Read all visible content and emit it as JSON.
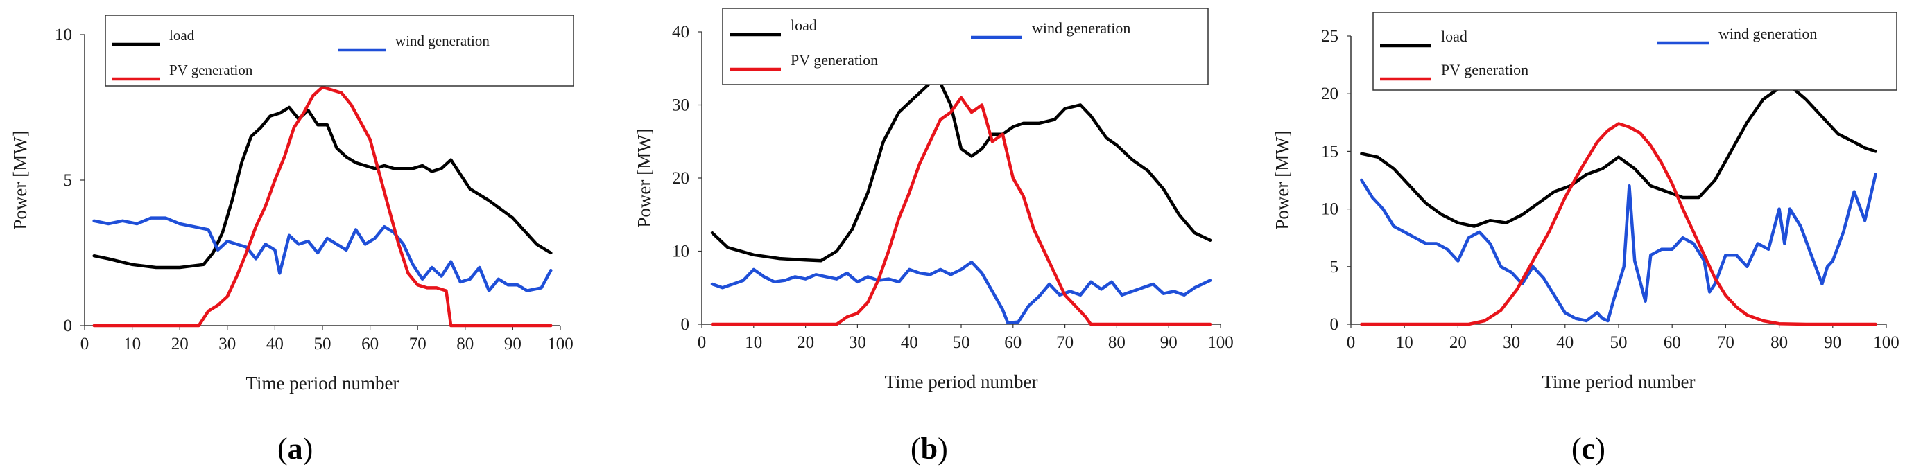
{
  "chart_data": [
    {
      "type": "line",
      "caption_letter": "a",
      "xlabel": "Time period number",
      "ylabel": "Power [MW]",
      "xlim": [
        0,
        100
      ],
      "ylim": [
        0,
        10
      ],
      "xticks": [
        "0",
        "10",
        "20",
        "30",
        "40",
        "50",
        "60",
        "70",
        "80",
        "90",
        "100"
      ],
      "yticks": [
        {
          "v": 0,
          "label": "0"
        },
        {
          "v": 5,
          "label": "5"
        },
        {
          "v": 10,
          "label": "10"
        }
      ],
      "legend": [
        "load",
        "wind generation",
        "PV generation"
      ],
      "series": [
        {
          "name": "load",
          "color": "#000000",
          "x": [
            2,
            5,
            10,
            15,
            20,
            25,
            27,
            29,
            31,
            33,
            35,
            37,
            39,
            41,
            43,
            45,
            47,
            49,
            51,
            53,
            55,
            57,
            59,
            61,
            63,
            65,
            67,
            69,
            71,
            73,
            75,
            77,
            79,
            81,
            85,
            90,
            95,
            98
          ],
          "values": [
            2.4,
            2.3,
            2.1,
            2.0,
            2.0,
            2.1,
            2.5,
            3.2,
            4.3,
            5.6,
            6.5,
            6.8,
            7.2,
            7.3,
            7.5,
            7.1,
            7.4,
            6.9,
            6.9,
            6.1,
            5.8,
            5.6,
            5.5,
            5.4,
            5.5,
            5.4,
            5.4,
            5.4,
            5.5,
            5.3,
            5.4,
            5.7,
            5.2,
            4.7,
            4.3,
            3.7,
            2.8,
            2.5
          ]
        },
        {
          "name": "wind generation",
          "color": "#1f4fd8",
          "x": [
            2,
            5,
            8,
            11,
            14,
            17,
            20,
            23,
            26,
            28,
            30,
            32,
            34,
            36,
            38,
            40,
            41,
            43,
            45,
            47,
            49,
            51,
            53,
            55,
            57,
            59,
            61,
            63,
            65,
            67,
            69,
            71,
            73,
            75,
            77,
            79,
            81,
            83,
            85,
            87,
            89,
            91,
            93,
            96,
            98
          ],
          "values": [
            3.6,
            3.5,
            3.6,
            3.5,
            3.7,
            3.7,
            3.5,
            3.4,
            3.3,
            2.6,
            2.9,
            2.8,
            2.7,
            2.3,
            2.8,
            2.6,
            1.8,
            3.1,
            2.8,
            2.9,
            2.5,
            3.0,
            2.8,
            2.6,
            3.3,
            2.8,
            3.0,
            3.4,
            3.2,
            2.8,
            2.1,
            1.6,
            2.0,
            1.7,
            2.2,
            1.5,
            1.6,
            2.0,
            1.2,
            1.6,
            1.4,
            1.4,
            1.2,
            1.3,
            1.9
          ]
        },
        {
          "name": "PV generation",
          "color": "#e8141b",
          "x": [
            2,
            24,
            26,
            28,
            30,
            32,
            34,
            36,
            38,
            40,
            42,
            44,
            46,
            48,
            50,
            52,
            54,
            56,
            58,
            60,
            62,
            64,
            66,
            68,
            70,
            72,
            74,
            76,
            77,
            98
          ],
          "values": [
            0,
            0,
            0.5,
            0.7,
            1.0,
            1.7,
            2.5,
            3.4,
            4.1,
            5.0,
            5.8,
            6.8,
            7.3,
            7.9,
            8.2,
            8.1,
            8.0,
            7.6,
            7.0,
            6.4,
            5.2,
            4.0,
            2.8,
            1.8,
            1.4,
            1.3,
            1.3,
            1.2,
            0,
            0
          ]
        }
      ]
    },
    {
      "type": "line",
      "caption_letter": "b",
      "xlabel": "Time period number",
      "ylabel": "Power [MW]",
      "xlim": [
        0,
        100
      ],
      "ylim": [
        0,
        40
      ],
      "xticks": [
        "0",
        "10",
        "20",
        "30",
        "40",
        "50",
        "60",
        "70",
        "80",
        "90",
        "100"
      ],
      "yticks": [
        {
          "v": 0,
          "label": "0"
        },
        {
          "v": 10,
          "label": "10"
        },
        {
          "v": 20,
          "label": "20"
        },
        {
          "v": 30,
          "label": "30"
        },
        {
          "v": 40,
          "label": "40"
        }
      ],
      "legend": [
        "load",
        "wind generation",
        "PV generation"
      ],
      "series": [
        {
          "name": "load",
          "color": "#000000",
          "x": [
            2,
            5,
            10,
            15,
            20,
            23,
            26,
            29,
            32,
            35,
            38,
            41,
            44,
            46,
            48,
            50,
            52,
            54,
            56,
            58,
            60,
            62,
            65,
            68,
            70,
            73,
            75,
            78,
            80,
            83,
            86,
            89,
            92,
            95,
            98
          ],
          "values": [
            12.5,
            10.5,
            9.5,
            9.0,
            8.8,
            8.7,
            10,
            13,
            18,
            25,
            29,
            31,
            33,
            33,
            30,
            24,
            23,
            24,
            26,
            26,
            27,
            27.5,
            27.5,
            28,
            29.5,
            30,
            28.5,
            25.5,
            24.5,
            22.5,
            21,
            18.5,
            15,
            12.5,
            11.5
          ]
        },
        {
          "name": "wind generation",
          "color": "#1f4fd8",
          "x": [
            2,
            4,
            6,
            8,
            10,
            12,
            14,
            16,
            18,
            20,
            22,
            24,
            26,
            28,
            30,
            32,
            34,
            36,
            38,
            40,
            42,
            44,
            46,
            48,
            50,
            52,
            54,
            56,
            58,
            59,
            61,
            63,
            65,
            67,
            69,
            71,
            73,
            75,
            77,
            79,
            81,
            83,
            85,
            87,
            89,
            91,
            93,
            95,
            98
          ],
          "values": [
            5.5,
            5.0,
            5.5,
            6.0,
            7.5,
            6.5,
            5.8,
            6.0,
            6.5,
            6.2,
            6.8,
            6.5,
            6.2,
            7.0,
            5.8,
            6.5,
            6.0,
            6.2,
            5.8,
            7.5,
            7.0,
            6.8,
            7.5,
            6.8,
            7.5,
            8.5,
            7.0,
            4.5,
            2.0,
            0.2,
            0.3,
            2.5,
            3.8,
            5.5,
            4.0,
            4.5,
            4.0,
            5.8,
            4.8,
            5.8,
            4.0,
            4.5,
            5.0,
            5.5,
            4.2,
            4.5,
            4.0,
            5.0,
            6.0
          ]
        },
        {
          "name": "PV generation",
          "color": "#e8141b",
          "x": [
            2,
            26,
            28,
            30,
            32,
            34,
            36,
            38,
            40,
            42,
            44,
            46,
            48,
            50,
            52,
            54,
            56,
            58,
            60,
            62,
            64,
            66,
            68,
            70,
            72,
            74,
            75,
            98
          ],
          "values": [
            0,
            0,
            1.0,
            1.5,
            3.0,
            6.0,
            10,
            14.5,
            18,
            22,
            25,
            28,
            29,
            31,
            29,
            30,
            25,
            26,
            20,
            17.5,
            13,
            10,
            7.0,
            4.0,
            2.5,
            1.0,
            0,
            0
          ]
        }
      ]
    },
    {
      "type": "line",
      "caption_letter": "c",
      "xlabel": "Time period number",
      "ylabel": "Power [MW]",
      "xlim": [
        0,
        100
      ],
      "ylim": [
        0,
        25
      ],
      "xticks": [
        "0",
        "10",
        "20",
        "30",
        "40",
        "50",
        "60",
        "70",
        "80",
        "90",
        "100"
      ],
      "yticks": [
        {
          "v": 0,
          "label": "0"
        },
        {
          "v": 5,
          "label": "5"
        },
        {
          "v": 10,
          "label": "10"
        },
        {
          "v": 15,
          "label": "15"
        },
        {
          "v": 20,
          "label": "20"
        },
        {
          "v": 25,
          "label": "25"
        }
      ],
      "legend": [
        "load",
        "wind generation",
        "PV generation"
      ],
      "series": [
        {
          "name": "load",
          "color": "#000000",
          "x": [
            2,
            5,
            8,
            11,
            14,
            17,
            20,
            23,
            26,
            29,
            32,
            35,
            38,
            41,
            44,
            47,
            50,
            53,
            56,
            59,
            62,
            65,
            68,
            71,
            74,
            77,
            80,
            82,
            85,
            88,
            91,
            94,
            96,
            98
          ],
          "values": [
            14.8,
            14.5,
            13.5,
            12.0,
            10.5,
            9.5,
            8.8,
            8.5,
            9.0,
            8.8,
            9.5,
            10.5,
            11.5,
            12.0,
            13.0,
            13.5,
            14.5,
            13.5,
            12.0,
            11.5,
            11.0,
            11.0,
            12.5,
            15.0,
            17.5,
            19.5,
            20.5,
            20.7,
            19.5,
            18.0,
            16.5,
            15.8,
            15.3,
            15.0
          ]
        },
        {
          "name": "wind generation",
          "color": "#1f4fd8",
          "x": [
            2,
            4,
            6,
            8,
            10,
            12,
            14,
            16,
            18,
            20,
            22,
            24,
            26,
            28,
            30,
            32,
            34,
            36,
            38,
            40,
            42,
            44,
            46,
            47,
            48,
            49,
            51,
            52,
            53,
            55,
            56,
            58,
            60,
            62,
            64,
            66,
            67,
            68,
            70,
            72,
            74,
            76,
            78,
            80,
            81,
            82,
            84,
            86,
            88,
            89,
            90,
            92,
            94,
            96,
            98
          ],
          "values": [
            12.5,
            11.0,
            10.0,
            8.5,
            8.0,
            7.5,
            7.0,
            7.0,
            6.5,
            5.5,
            7.5,
            8.0,
            7.0,
            5.0,
            4.5,
            3.5,
            5.0,
            4.0,
            2.5,
            1.0,
            0.5,
            0.3,
            1.0,
            0.5,
            0.3,
            2.0,
            5.0,
            12.0,
            5.5,
            2.0,
            6.0,
            6.5,
            6.5,
            7.5,
            7.0,
            5.5,
            2.8,
            3.5,
            6.0,
            6.0,
            5.0,
            7.0,
            6.5,
            10.0,
            7.0,
            10.0,
            8.5,
            6.0,
            3.5,
            5.0,
            5.5,
            8.0,
            11.5,
            9.0,
            13.0
          ]
        },
        {
          "name": "PV generation",
          "color": "#e8141b",
          "x": [
            2,
            22,
            25,
            28,
            31,
            34,
            37,
            40,
            43,
            46,
            48,
            50,
            52,
            54,
            56,
            58,
            60,
            62,
            64,
            66,
            68,
            70,
            72,
            74,
            77,
            80,
            85,
            98
          ],
          "values": [
            0,
            0,
            0.3,
            1.2,
            3.0,
            5.5,
            8.0,
            11.0,
            13.5,
            15.8,
            16.8,
            17.4,
            17.1,
            16.6,
            15.5,
            14.0,
            12.2,
            10.0,
            8.0,
            6.0,
            4.0,
            2.5,
            1.5,
            0.8,
            0.3,
            0.05,
            0,
            0
          ]
        }
      ]
    }
  ]
}
